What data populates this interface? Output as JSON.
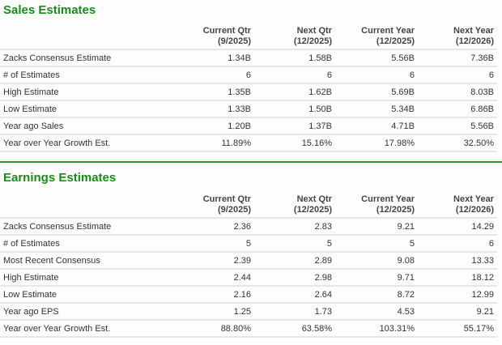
{
  "sales": {
    "title": "Sales Estimates",
    "columns": [
      {
        "name": "Current Qtr",
        "period": "(9/2025)"
      },
      {
        "name": "Next Qtr",
        "period": "(12/2025)"
      },
      {
        "name": "Current Year",
        "period": "(12/2025)"
      },
      {
        "name": "Next Year",
        "period": "(12/2026)"
      }
    ],
    "rows": [
      {
        "label": "Zacks Consensus Estimate",
        "values": [
          "1.34B",
          "1.58B",
          "5.56B",
          "7.36B"
        ]
      },
      {
        "label": "# of Estimates",
        "values": [
          "6",
          "6",
          "6",
          "6"
        ]
      },
      {
        "label": "High Estimate",
        "values": [
          "1.35B",
          "1.62B",
          "5.69B",
          "8.03B"
        ]
      },
      {
        "label": "Low Estimate",
        "values": [
          "1.33B",
          "1.50B",
          "5.34B",
          "6.86B"
        ]
      },
      {
        "label": "Year ago Sales",
        "values": [
          "1.20B",
          "1.37B",
          "4.71B",
          "5.56B"
        ]
      },
      {
        "label": "Year over Year Growth Est.",
        "values": [
          "11.89%",
          "15.16%",
          "17.98%",
          "32.50%"
        ]
      }
    ]
  },
  "earnings": {
    "title": "Earnings Estimates",
    "columns": [
      {
        "name": "Current Qtr",
        "period": "(9/2025)"
      },
      {
        "name": "Next Qtr",
        "period": "(12/2025)"
      },
      {
        "name": "Current Year",
        "period": "(12/2025)"
      },
      {
        "name": "Next Year",
        "period": "(12/2026)"
      }
    ],
    "rows": [
      {
        "label": "Zacks Consensus Estimate",
        "values": [
          "2.36",
          "2.83",
          "9.21",
          "14.29"
        ]
      },
      {
        "label": "# of Estimates",
        "values": [
          "5",
          "5",
          "5",
          "6"
        ]
      },
      {
        "label": "Most Recent Consensus",
        "values": [
          "2.39",
          "2.89",
          "9.08",
          "13.33"
        ]
      },
      {
        "label": "High Estimate",
        "values": [
          "2.44",
          "2.98",
          "9.71",
          "18.12"
        ]
      },
      {
        "label": "Low Estimate",
        "values": [
          "2.16",
          "2.64",
          "8.72",
          "12.99"
        ]
      },
      {
        "label": "Year ago EPS",
        "values": [
          "1.25",
          "1.73",
          "4.53",
          "9.21"
        ]
      },
      {
        "label": "Year over Year Growth Est.",
        "values": [
          "88.80%",
          "63.58%",
          "103.31%",
          "55.17%"
        ]
      }
    ]
  },
  "colors": {
    "title": "#1a8a1a",
    "divider": "#2e8b2e",
    "row_border": "#e6e6e6"
  }
}
